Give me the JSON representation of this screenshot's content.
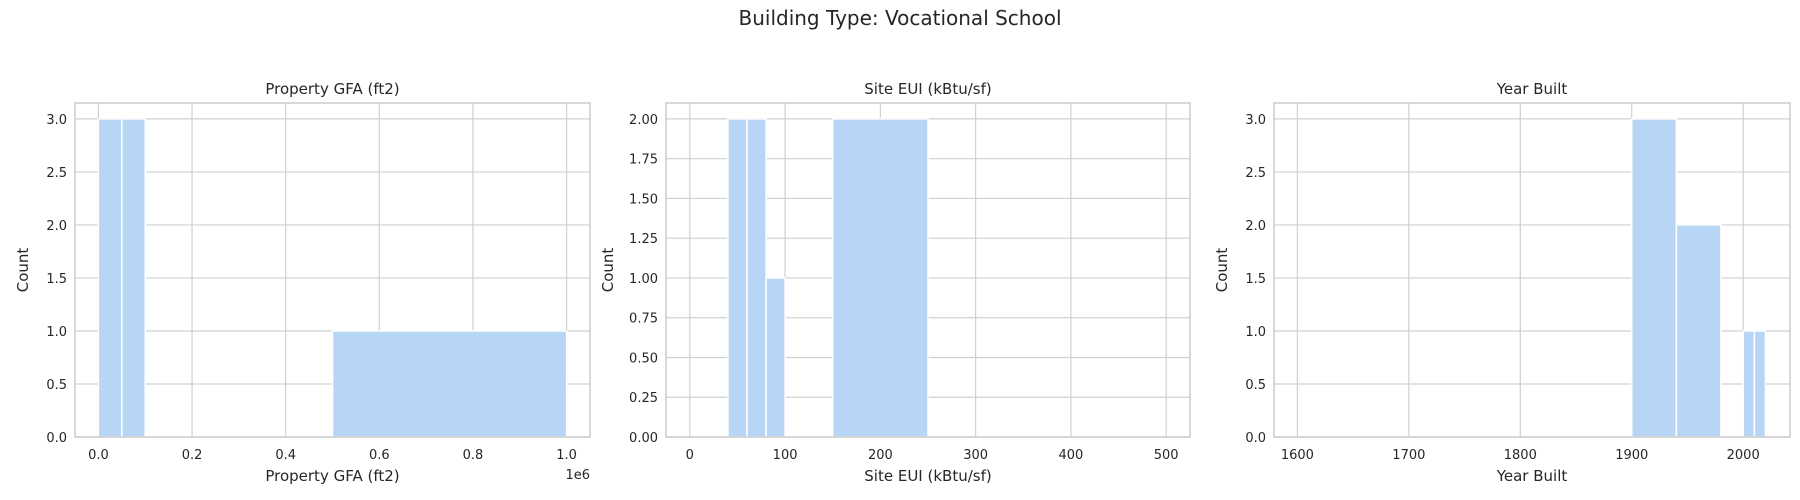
{
  "suptitle": "Building Type: Vocational School",
  "colors": {
    "bar": "#b7d6f5",
    "bar_edge": "#ffffff",
    "grid": "#d0d0d0",
    "spine": "#cccccc"
  },
  "chart_data": [
    {
      "type": "bar",
      "title": "Property GFA (ft2)",
      "xlabel": "Property GFA (ft2)",
      "ylabel": "Count",
      "xlim": [
        -50000,
        1050000
      ],
      "ylim": [
        0,
        3.15
      ],
      "x_ticks": [
        0,
        200000,
        400000,
        600000,
        800000,
        1000000
      ],
      "x_tick_labels": [
        "0.0",
        "0.2",
        "0.4",
        "0.6",
        "0.8",
        "1.0"
      ],
      "x_offset_text": "1e6",
      "y_ticks": [
        0,
        0.5,
        1.0,
        1.5,
        2.0,
        2.5,
        3.0
      ],
      "y_tick_labels": [
        "0.0",
        "0.5",
        "1.0",
        "1.5",
        "2.0",
        "2.5",
        "3.0"
      ],
      "grid": true,
      "bins": [
        {
          "start": 0,
          "end": 50000,
          "count": 3
        },
        {
          "start": 50000,
          "end": 100000,
          "count": 3
        },
        {
          "start": 500000,
          "end": 1000000,
          "count": 1
        }
      ]
    },
    {
      "type": "bar",
      "title": "Site EUI (kBtu/sf)",
      "xlabel": "Site EUI (kBtu/sf)",
      "ylabel": "Count",
      "xlim": [
        -25,
        525
      ],
      "ylim": [
        0,
        2.1
      ],
      "x_ticks": [
        0,
        100,
        200,
        300,
        400,
        500
      ],
      "x_tick_labels": [
        "0",
        "100",
        "200",
        "300",
        "400",
        "500"
      ],
      "y_ticks": [
        0,
        0.25,
        0.5,
        0.75,
        1.0,
        1.25,
        1.5,
        1.75,
        2.0
      ],
      "y_tick_labels": [
        "0.00",
        "0.25",
        "0.50",
        "0.75",
        "1.00",
        "1.25",
        "1.50",
        "1.75",
        "2.00"
      ],
      "grid": true,
      "bins": [
        {
          "start": 40,
          "end": 60,
          "count": 2
        },
        {
          "start": 60,
          "end": 80,
          "count": 2
        },
        {
          "start": 80,
          "end": 100,
          "count": 1
        },
        {
          "start": 150,
          "end": 250,
          "count": 2
        }
      ]
    },
    {
      "type": "bar",
      "title": "Year Built",
      "xlabel": "Year Built",
      "ylabel": "Count",
      "xlim": [
        1579,
        2042
      ],
      "ylim": [
        0,
        3.15
      ],
      "x_ticks": [
        1600,
        1700,
        1800,
        1900,
        2000
      ],
      "x_tick_labels": [
        "1600",
        "1700",
        "1800",
        "1900",
        "2000"
      ],
      "y_ticks": [
        0,
        0.5,
        1.0,
        1.5,
        2.0,
        2.5,
        3.0
      ],
      "y_tick_labels": [
        "0.0",
        "0.5",
        "1.0",
        "1.5",
        "2.0",
        "2.5",
        "3.0"
      ],
      "grid": true,
      "bins": [
        {
          "start": 1900,
          "end": 1940,
          "count": 3
        },
        {
          "start": 1940,
          "end": 1980,
          "count": 2
        },
        {
          "start": 2000,
          "end": 2010,
          "count": 1
        },
        {
          "start": 2010,
          "end": 2020,
          "count": 1
        }
      ]
    }
  ]
}
